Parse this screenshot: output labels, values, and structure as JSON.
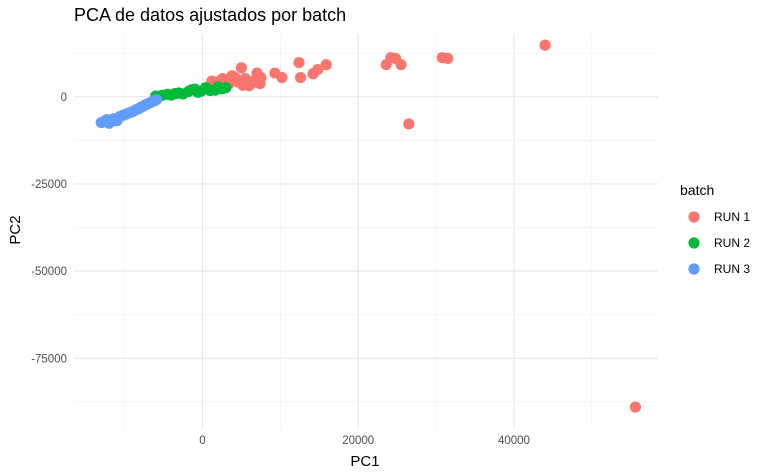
{
  "chart_data": {
    "type": "scatter",
    "title": "PCA de datos ajustados por batch",
    "xlabel": "PC1",
    "ylabel": "PC2",
    "xlim": [
      -16500,
      58500
    ],
    "ylim": [
      -95000,
      18000
    ],
    "x_ticks": [
      0,
      20000,
      40000
    ],
    "x_tick_labels": [
      "0",
      "20000",
      "40000"
    ],
    "y_ticks": [
      0,
      -25000,
      -50000,
      -75000
    ],
    "y_tick_labels": [
      "0",
      "-25000",
      "-50000",
      "-75000"
    ],
    "grid": true,
    "legend": {
      "title": "batch",
      "position": "right"
    },
    "series": [
      {
        "name": "RUN 1",
        "color": "#F8766D",
        "points": [
          [
            1200,
            4500
          ],
          [
            1800,
            4200
          ],
          [
            2200,
            3600
          ],
          [
            2600,
            5200
          ],
          [
            3000,
            4800
          ],
          [
            3400,
            3800
          ],
          [
            3800,
            6000
          ],
          [
            4200,
            5500
          ],
          [
            4600,
            4200
          ],
          [
            5000,
            8300
          ],
          [
            5200,
            3300
          ],
          [
            5500,
            5200
          ],
          [
            5800,
            4000
          ],
          [
            6000,
            3200
          ],
          [
            6300,
            3800
          ],
          [
            6600,
            4500
          ],
          [
            7000,
            6800
          ],
          [
            7200,
            5000
          ],
          [
            7400,
            3800
          ],
          [
            7500,
            5500
          ],
          [
            9300,
            6800
          ],
          [
            10200,
            5500
          ],
          [
            12400,
            9800
          ],
          [
            12600,
            5500
          ],
          [
            14200,
            6600
          ],
          [
            14800,
            7800
          ],
          [
            15900,
            9200
          ],
          [
            23600,
            9200
          ],
          [
            24200,
            11200
          ],
          [
            24800,
            11000
          ],
          [
            25500,
            9200
          ],
          [
            26500,
            -7800
          ],
          [
            30800,
            11200
          ],
          [
            31500,
            11000
          ],
          [
            44000,
            14800
          ],
          [
            55600,
            -89000
          ]
        ]
      },
      {
        "name": "RUN 2",
        "color": "#00BA38",
        "points": [
          [
            -6000,
            200
          ],
          [
            -5200,
            400
          ],
          [
            -4500,
            700
          ],
          [
            -4000,
            500
          ],
          [
            -3500,
            900
          ],
          [
            -3000,
            1100
          ],
          [
            -2500,
            800
          ],
          [
            -1800,
            1500
          ],
          [
            -1400,
            2000
          ],
          [
            -1000,
            2200
          ],
          [
            -600,
            1300
          ],
          [
            -200,
            1600
          ],
          [
            400,
            2600
          ],
          [
            1000,
            1800
          ],
          [
            1600,
            1900
          ],
          [
            2000,
            2800
          ],
          [
            2500,
            2300
          ],
          [
            3000,
            2600
          ]
        ]
      },
      {
        "name": "RUN 3",
        "color": "#619CFF",
        "points": [
          [
            -13000,
            -7400
          ],
          [
            -12600,
            -7000
          ],
          [
            -12300,
            -6600
          ],
          [
            -12000,
            -7600
          ],
          [
            -11700,
            -7000
          ],
          [
            -11400,
            -6300
          ],
          [
            -11000,
            -6900
          ],
          [
            -10600,
            -5700
          ],
          [
            -10200,
            -5300
          ],
          [
            -9800,
            -5000
          ],
          [
            -9400,
            -4600
          ],
          [
            -9000,
            -4300
          ],
          [
            -8600,
            -3800
          ],
          [
            -8200,
            -3400
          ],
          [
            -7900,
            -3000
          ],
          [
            -7600,
            -2700
          ],
          [
            -7300,
            -2300
          ],
          [
            -7000,
            -2000
          ],
          [
            -6600,
            -1600
          ],
          [
            -6200,
            -1200
          ],
          [
            -5900,
            -800
          ]
        ]
      }
    ]
  }
}
